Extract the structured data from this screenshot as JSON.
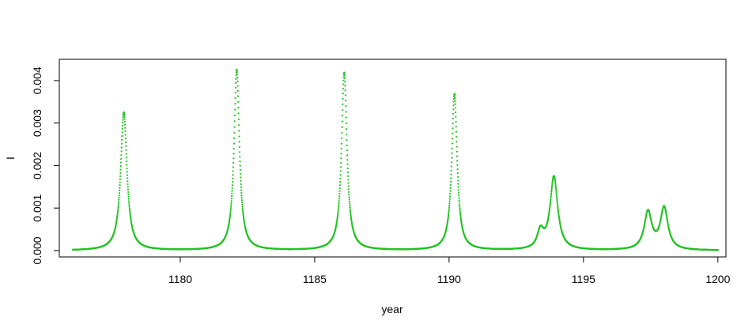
{
  "chart_data": {
    "type": "scatter",
    "xlabel": "year",
    "ylabel": "I",
    "xlim": [
      1175.5,
      1200.3
    ],
    "ylim": [
      -0.00015,
      0.0045
    ],
    "x_ticks": [
      1180,
      1185,
      1190,
      1195,
      1200
    ],
    "x_tick_labels": [
      "1180",
      "1185",
      "1190",
      "1195",
      "1200"
    ],
    "y_ticks": [
      0.0,
      0.001,
      0.002,
      0.003,
      0.004
    ],
    "y_tick_labels": [
      "0.000",
      "0.001",
      "0.002",
      "0.003",
      "0.004"
    ],
    "grid": false,
    "series": [
      {
        "color": "#22c322",
        "x_range": [
          1176,
          1200
        ],
        "peaks": [
          {
            "x": 1177.9,
            "y": 0.00325
          },
          {
            "x": 1182.1,
            "y": 0.00425
          },
          {
            "x": 1186.1,
            "y": 0.00418
          },
          {
            "x": 1190.2,
            "y": 0.00368
          },
          {
            "x": 1193.4,
            "y": 0.0004
          },
          {
            "x": 1193.9,
            "y": 0.00172
          },
          {
            "x": 1197.4,
            "y": 0.00088
          },
          {
            "x": 1198.0,
            "y": 0.00098
          }
        ]
      }
    ]
  }
}
